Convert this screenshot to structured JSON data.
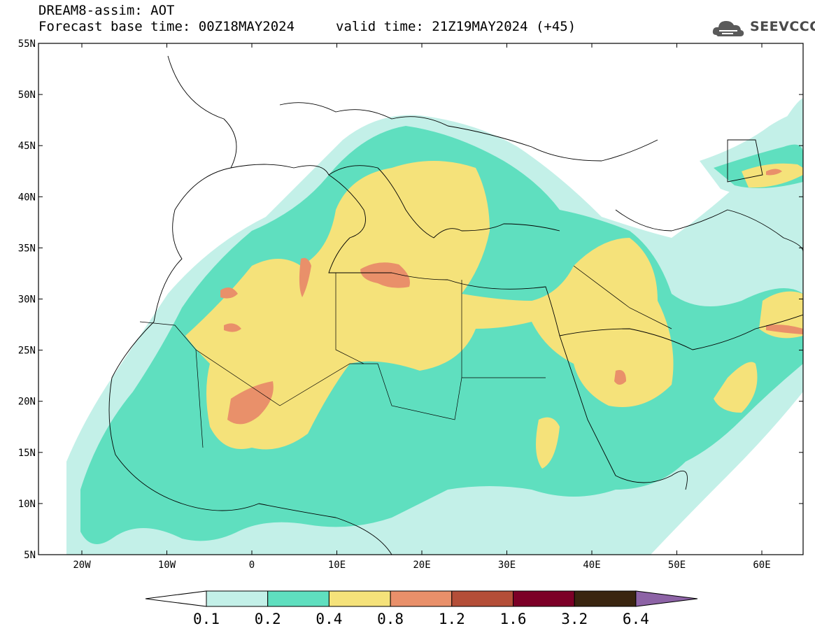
{
  "header": {
    "title": "DREAM8-assim: AOT",
    "base_time": "Forecast base time: 00Z18MAY2024",
    "valid_time": "valid time: 21Z19MAY2024 (+45)",
    "logo_text": "SEEVCCC"
  },
  "map": {
    "lat_labels": [
      "55N",
      "50N",
      "45N",
      "40N",
      "35N",
      "30N",
      "25N",
      "20N",
      "15N",
      "10N",
      "5N"
    ],
    "lon_labels": [
      "20W",
      "10W",
      "0",
      "10E",
      "20E",
      "30E",
      "40E",
      "50E",
      "60E"
    ]
  },
  "colorbar": {
    "labels": [
      "0.1",
      "0.2",
      "0.4",
      "0.8",
      "1.2",
      "1.6",
      "3.2",
      "6.4"
    ],
    "colors": [
      "#ffffff",
      "#c3f0e8",
      "#5fdfbf",
      "#f5e27a",
      "#e9906a",
      "#b44e38",
      "#7c0027",
      "#3a2510",
      "#8d63a6"
    ]
  },
  "icons": {
    "logo": "cloud-icon"
  }
}
